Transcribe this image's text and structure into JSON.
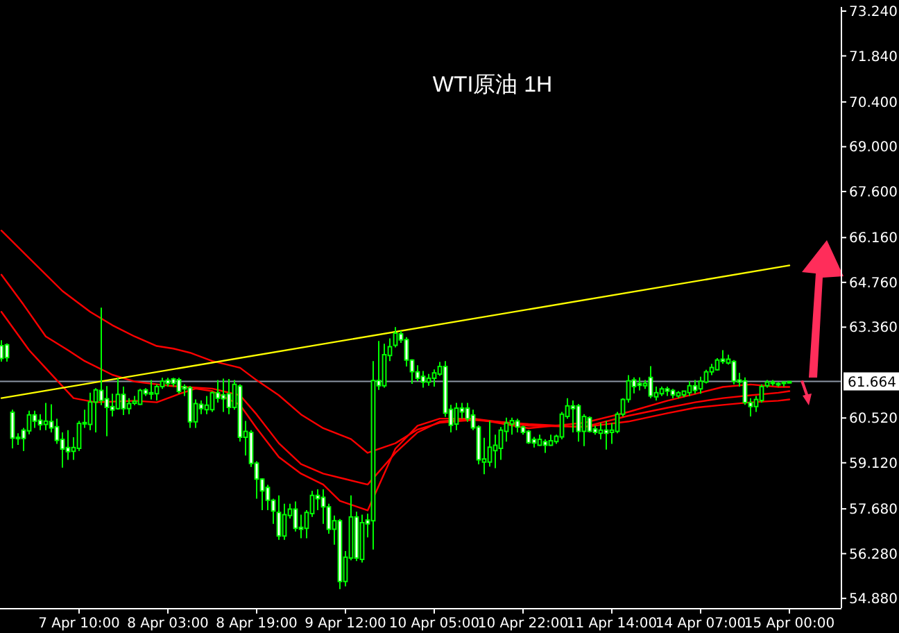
{
  "chart_data": {
    "type": "candlestick",
    "title": "WTI原油 1H",
    "color": "#00ff00",
    "categories": [
      null,
      null,
      null,
      null,
      null,
      null,
      null,
      null,
      null,
      null,
      null,
      null,
      null,
      null,
      "7 Apr 10:00",
      null,
      null,
      null,
      null,
      null,
      null,
      null,
      null,
      null,
      null,
      null,
      null,
      null,
      null,
      null,
      "8 Apr 03:00",
      null,
      null,
      null,
      null,
      null,
      null,
      null,
      null,
      null,
      null,
      null,
      null,
      null,
      null,
      null,
      "8 Apr 19:00",
      null,
      null,
      null,
      null,
      null,
      null,
      null,
      null,
      null,
      null,
      null,
      null,
      null,
      null,
      null,
      "9 Apr 12:00",
      null,
      null,
      null,
      null,
      null,
      null,
      null,
      null,
      null,
      null,
      null,
      null,
      null,
      null,
      null,
      "10 Apr 05:00",
      null,
      null,
      null,
      null,
      null,
      null,
      null,
      null,
      null,
      null,
      null,
      null,
      null,
      null,
      null,
      "10 Apr 22:00",
      null,
      null,
      null,
      null,
      null,
      null,
      null,
      null,
      null,
      null,
      null,
      null,
      null,
      null,
      null,
      "11 Apr 14:00",
      null,
      null,
      null,
      null,
      null,
      null,
      null,
      null,
      null,
      null,
      null,
      null,
      null,
      null,
      null,
      "14 Apr 07:00",
      null,
      null,
      null,
      null,
      null,
      null,
      null,
      null,
      null,
      null,
      null,
      null,
      null,
      null,
      null,
      "15 Apr 00:00"
    ],
    "ohlc": [
      [
        62.78,
        62.95,
        62.28,
        62.38
      ],
      [
        62.81,
        62.85,
        62.28,
        62.41
      ],
      [
        60.7,
        60.78,
        59.57,
        59.89
      ],
      [
        59.92,
        60.04,
        59.68,
        59.88
      ],
      [
        60.14,
        60.21,
        59.49,
        59.88
      ],
      [
        60.12,
        60.75,
        60.01,
        60.62
      ],
      [
        60.62,
        60.75,
        60.21,
        60.42
      ],
      [
        60.45,
        60.64,
        60.14,
        60.31
      ],
      [
        60.32,
        60.99,
        60.14,
        60.42
      ],
      [
        60.41,
        60.95,
        60.07,
        60.21
      ],
      [
        60.25,
        60.5,
        59.71,
        59.82
      ],
      [
        59.85,
        60.07,
        58.97,
        59.55
      ],
      [
        59.6,
        60.14,
        59.21,
        59.47
      ],
      [
        59.48,
        59.92,
        59.21,
        59.6
      ],
      [
        59.57,
        60.43,
        59.49,
        60.35
      ],
      [
        60.38,
        60.78,
        60.21,
        60.35
      ],
      [
        60.32,
        61.31,
        60.14,
        61.02
      ],
      [
        61.02,
        61.45,
        60.07,
        61.4
      ],
      [
        61.38,
        63.97,
        60.92,
        61.07
      ],
      [
        61.12,
        61.52,
        59.95,
        60.85
      ],
      [
        60.88,
        61.28,
        60.57,
        60.77
      ],
      [
        60.81,
        61.78,
        60.78,
        61.26
      ],
      [
        61.26,
        61.5,
        60.61,
        60.81
      ],
      [
        60.81,
        61.14,
        60.64,
        60.97
      ],
      [
        60.98,
        61.21,
        60.92,
        61.04
      ],
      [
        60.95,
        61.43,
        60.92,
        61.38
      ],
      [
        61.4,
        61.45,
        61.21,
        61.28
      ],
      [
        61.31,
        61.71,
        61.1,
        61.28
      ],
      [
        61.28,
        61.57,
        61.07,
        61.5
      ],
      [
        61.5,
        61.78,
        61.43,
        61.67
      ],
      [
        61.7,
        61.78,
        61.5,
        61.6
      ],
      [
        61.74,
        61.78,
        61.5,
        61.6
      ],
      [
        61.72,
        61.78,
        61.28,
        61.35
      ],
      [
        61.5,
        61.57,
        61.21,
        61.43
      ],
      [
        61.47,
        61.52,
        60.21,
        60.4
      ],
      [
        60.4,
        61.1,
        60.21,
        60.97
      ],
      [
        60.95,
        61.07,
        60.64,
        60.81
      ],
      [
        60.78,
        61.21,
        60.64,
        60.92
      ],
      [
        60.78,
        61.35,
        60.71,
        61.31
      ],
      [
        61.31,
        61.71,
        61.0,
        61.14
      ],
      [
        61.24,
        61.75,
        60.71,
        61.12
      ],
      [
        61.28,
        61.74,
        60.64,
        60.85
      ],
      [
        60.85,
        61.71,
        60.78,
        61.57
      ],
      [
        61.52,
        61.57,
        59.78,
        59.92
      ],
      [
        59.92,
        60.43,
        59.35,
        60.1
      ],
      [
        60.07,
        60.14,
        58.99,
        59.1
      ],
      [
        59.11,
        59.17,
        58.0,
        58.61
      ],
      [
        58.61,
        58.64,
        57.64,
        58.24
      ],
      [
        58.35,
        58.43,
        57.64,
        57.95
      ],
      [
        57.95,
        58.0,
        57.21,
        57.61
      ],
      [
        57.57,
        58.1,
        56.71,
        56.83
      ],
      [
        56.83,
        57.84,
        56.71,
        57.5
      ],
      [
        57.47,
        57.84,
        57.38,
        57.67
      ],
      [
        57.67,
        57.91,
        56.97,
        57.07
      ],
      [
        57.1,
        57.5,
        56.76,
        57.04
      ],
      [
        57.07,
        57.64,
        56.76,
        57.57
      ],
      [
        57.53,
        58.24,
        57.43,
        58.1
      ],
      [
        58.1,
        58.29,
        57.64,
        58.0
      ],
      [
        58.04,
        58.29,
        57.21,
        57.74
      ],
      [
        57.74,
        57.84,
        56.9,
        57.04
      ],
      [
        57.04,
        57.47,
        56.56,
        57.31
      ],
      [
        57.31,
        57.36,
        55.17,
        55.41
      ],
      [
        55.41,
        56.36,
        55.26,
        56.17
      ],
      [
        56.14,
        58.1,
        56.07,
        57.43
      ],
      [
        57.43,
        57.59,
        56.05,
        56.14
      ],
      [
        56.1,
        57.5,
        56.0,
        57.25
      ],
      [
        57.33,
        57.53,
        56.79,
        57.21
      ],
      [
        57.31,
        62.3,
        56.41,
        61.69
      ],
      [
        61.69,
        62.93,
        61.4,
        61.53
      ],
      [
        61.53,
        62.84,
        61.47,
        62.5
      ],
      [
        62.47,
        63.01,
        62.3,
        62.75
      ],
      [
        62.79,
        63.36,
        62.73,
        63.17
      ],
      [
        63.15,
        63.24,
        62.87,
        62.96
      ],
      [
        62.97,
        63.05,
        62.13,
        62.33
      ],
      [
        62.33,
        62.36,
        61.59,
        61.97
      ],
      [
        61.96,
        62.17,
        61.67,
        61.76
      ],
      [
        61.82,
        61.99,
        61.47,
        61.64
      ],
      [
        61.64,
        61.9,
        61.53,
        61.76
      ],
      [
        61.76,
        62.04,
        61.5,
        61.93
      ],
      [
        61.89,
        62.27,
        61.84,
        62.13
      ],
      [
        62.13,
        62.3,
        60.56,
        60.67
      ],
      [
        60.79,
        60.93,
        60.07,
        60.29
      ],
      [
        60.33,
        60.99,
        60.14,
        60.83
      ],
      [
        60.83,
        60.99,
        60.5,
        60.71
      ],
      [
        60.83,
        60.99,
        60.4,
        60.5
      ],
      [
        60.61,
        60.78,
        60.14,
        60.21
      ],
      [
        60.24,
        60.29,
        59.07,
        59.21
      ],
      [
        59.14,
        59.9,
        58.76,
        59.24
      ],
      [
        59.14,
        60.43,
        59.0,
        59.61
      ],
      [
        59.5,
        60.0,
        58.95,
        59.67
      ],
      [
        59.57,
        60.24,
        59.21,
        60.14
      ],
      [
        60.1,
        60.53,
        59.78,
        60.36
      ],
      [
        60.33,
        60.53,
        60.0,
        60.44
      ],
      [
        60.43,
        60.5,
        60.07,
        60.24
      ],
      [
        60.24,
        60.28,
        60.0,
        60.07
      ],
      [
        60.1,
        60.14,
        59.71,
        59.75
      ],
      [
        59.85,
        59.93,
        59.6,
        59.74
      ],
      [
        59.67,
        60.0,
        59.64,
        59.85
      ],
      [
        59.78,
        59.85,
        59.43,
        59.67
      ],
      [
        59.67,
        60.0,
        59.64,
        59.81
      ],
      [
        59.78,
        60.0,
        59.71,
        59.95
      ],
      [
        59.93,
        60.71,
        59.85,
        60.64
      ],
      [
        60.57,
        61.14,
        60.5,
        60.9
      ],
      [
        60.9,
        61.07,
        60.07,
        60.81
      ],
      [
        60.9,
        60.96,
        59.78,
        60.1
      ],
      [
        60.1,
        60.64,
        59.64,
        60.57
      ],
      [
        60.53,
        60.57,
        60.07,
        60.1
      ],
      [
        60.18,
        60.28,
        60.0,
        60.07
      ],
      [
        60.04,
        60.36,
        59.85,
        60.14
      ],
      [
        60.14,
        60.43,
        59.53,
        60.04
      ],
      [
        60.07,
        60.36,
        59.71,
        60.14
      ],
      [
        60.1,
        60.71,
        60.04,
        60.64
      ],
      [
        60.64,
        61.14,
        60.57,
        61.1
      ],
      [
        61.1,
        61.86,
        61.0,
        61.68
      ],
      [
        61.71,
        61.79,
        61.29,
        61.5
      ],
      [
        61.6,
        61.79,
        61.38,
        61.54
      ],
      [
        61.53,
        61.71,
        61.43,
        61.6
      ],
      [
        61.79,
        62.14,
        61.14,
        61.21
      ],
      [
        61.18,
        61.5,
        61.07,
        61.31
      ],
      [
        61.28,
        61.5,
        61.21,
        61.43
      ],
      [
        61.43,
        61.5,
        61.21,
        61.36
      ],
      [
        61.38,
        61.43,
        61.14,
        61.24
      ],
      [
        61.21,
        61.36,
        61.14,
        61.31
      ],
      [
        61.24,
        61.38,
        61.17,
        61.36
      ],
      [
        61.31,
        61.67,
        61.21,
        61.53
      ],
      [
        61.53,
        61.71,
        61.28,
        61.38
      ],
      [
        61.43,
        61.81,
        61.28,
        61.67
      ],
      [
        61.64,
        62.03,
        61.6,
        61.96
      ],
      [
        61.96,
        62.21,
        61.86,
        62.1
      ],
      [
        62.03,
        62.39,
        62.0,
        62.33
      ],
      [
        62.36,
        62.64,
        62.21,
        62.29
      ],
      [
        62.24,
        62.5,
        62.19,
        62.36
      ],
      [
        62.29,
        62.33,
        61.57,
        61.67
      ],
      [
        61.71,
        61.93,
        61.5,
        61.64
      ],
      [
        61.68,
        61.79,
        60.93,
        61.0
      ],
      [
        61.0,
        61.14,
        60.57,
        60.88
      ],
      [
        60.88,
        61.21,
        60.71,
        61.1
      ],
      [
        61.07,
        61.57,
        61.0,
        61.5
      ],
      [
        61.53,
        61.71,
        61.47,
        61.64
      ],
      [
        61.6,
        61.71,
        61.53,
        61.64
      ],
      [
        61.57,
        61.64,
        61.5,
        61.6
      ],
      [
        61.6,
        61.64,
        61.5,
        61.64
      ],
      [
        61.64,
        61.67,
        61.6,
        61.66
      ]
    ],
    "series": [
      {
        "type": "line",
        "color": "#ff0000",
        "values": [
          66.38,
          null,
          null,
          null,
          null,
          65.52,
          null,
          null,
          null,
          null,
          null,
          64.49,
          null,
          null,
          null,
          null,
          63.84,
          null,
          null,
          null,
          63.42,
          null,
          null,
          null,
          63.07,
          null,
          null,
          null,
          62.77,
          null,
          null,
          62.69,
          null,
          null,
          62.56,
          null,
          null,
          null,
          62.3,
          null,
          null,
          null,
          null,
          62.09,
          null,
          null,
          61.7,
          null,
          null,
          null,
          61.23,
          null,
          null,
          null,
          60.63,
          null,
          null,
          null,
          60.2,
          null,
          null,
          null,
          null,
          59.86,
          null,
          null,
          59.43,
          null,
          null,
          null,
          null,
          59.73,
          null,
          null,
          null,
          60.16,
          null,
          null,
          null,
          60.37,
          null,
          null,
          null,
          null,
          null,
          60.46,
          null,
          null,
          null,
          null,
          null,
          null,
          null,
          null,
          null,
          60.33,
          null,
          null,
          null,
          null,
          null,
          null,
          null,
          null,
          null,
          60.24,
          null,
          null,
          null,
          null,
          null,
          null,
          null,
          60.41,
          null,
          null,
          null,
          null,
          null,
          null,
          60.67,
          null,
          null,
          null,
          null,
          60.84,
          null,
          null,
          null,
          null,
          60.93,
          null,
          null,
          null,
          null,
          61.01,
          null,
          null,
          null,
          null,
          61.06,
          null,
          61.1
        ]
      },
      {
        "type": "line",
        "color": "#ff0000",
        "values": [
          65.0,
          null,
          null,
          null,
          64.06,
          null,
          null,
          null,
          63.07,
          null,
          null,
          null,
          62.64,
          null,
          null,
          62.3,
          null,
          null,
          null,
          null,
          61.87,
          null,
          null,
          null,
          61.66,
          null,
          null,
          null,
          null,
          null,
          61.53,
          null,
          null,
          61.49,
          null,
          null,
          null,
          null,
          61.44,
          null,
          null,
          null,
          null,
          61.23,
          null,
          null,
          60.63,
          null,
          null,
          null,
          59.73,
          null,
          null,
          null,
          59.08,
          null,
          null,
          null,
          58.78,
          null,
          null,
          null,
          58.61,
          null,
          null,
          null,
          58.44,
          null,
          null,
          null,
          null,
          59.43,
          null,
          null,
          null,
          60.07,
          null,
          null,
          null,
          60.41,
          null,
          null,
          null,
          null,
          null,
          60.5,
          null,
          null,
          null,
          null,
          null,
          null,
          null,
          null,
          null,
          60.28,
          null,
          null,
          null,
          null,
          null,
          null,
          null,
          null,
          null,
          60.24,
          null,
          null,
          null,
          null,
          null,
          null,
          null,
          60.59,
          null,
          null,
          null,
          null,
          null,
          null,
          60.84,
          null,
          null,
          null,
          null,
          61.01,
          null,
          null,
          null,
          null,
          61.14,
          null,
          null,
          null,
          null,
          61.23,
          null,
          null,
          null,
          null,
          61.31,
          null,
          61.36
        ]
      },
      {
        "type": "line",
        "color": "#ff0000",
        "values": [
          63.84,
          null,
          null,
          null,
          null,
          62.64,
          null,
          null,
          null,
          null,
          61.7,
          null,
          null,
          61.14,
          null,
          null,
          null,
          61.01,
          null,
          null,
          null,
          null,
          null,
          null,
          61.06,
          null,
          null,
          null,
          61.01,
          null,
          null,
          null,
          61.27,
          null,
          null,
          61.44,
          null,
          null,
          61.36,
          null,
          null,
          null,
          null,
          60.93,
          null,
          null,
          60.2,
          null,
          null,
          null,
          59.3,
          null,
          null,
          null,
          58.78,
          null,
          null,
          null,
          58.44,
          null,
          null,
          57.93,
          null,
          null,
          null,
          null,
          57.63,
          null,
          null,
          null,
          null,
          59.56,
          null,
          null,
          null,
          60.28,
          null,
          null,
          null,
          60.5,
          null,
          null,
          null,
          null,
          null,
          60.5,
          null,
          null,
          null,
          null,
          null,
          null,
          null,
          null,
          null,
          60.2,
          null,
          null,
          null,
          null,
          null,
          null,
          null,
          null,
          null,
          60.37,
          null,
          null,
          null,
          null,
          null,
          null,
          null,
          60.71,
          null,
          null,
          null,
          null,
          null,
          null,
          61.06,
          null,
          null,
          null,
          null,
          61.27,
          null,
          null,
          null,
          null,
          61.49,
          null,
          null,
          null,
          null,
          61.57,
          null,
          null,
          null,
          null,
          61.49,
          null,
          61.49
        ]
      },
      {
        "type": "line",
        "color": "#ffff00",
        "values": [
          61.14,
          null,
          null,
          null,
          null,
          null,
          null,
          null,
          null,
          null,
          null,
          null,
          null,
          null,
          null,
          null,
          null,
          null,
          null,
          null,
          null,
          null,
          null,
          null,
          null,
          null,
          null,
          null,
          null,
          null,
          null,
          null,
          null,
          null,
          null,
          null,
          null,
          null,
          null,
          null,
          null,
          null,
          null,
          null,
          null,
          null,
          null,
          null,
          null,
          null,
          null,
          null,
          null,
          null,
          null,
          null,
          null,
          null,
          null,
          null,
          null,
          null,
          null,
          null,
          null,
          null,
          null,
          null,
          null,
          null,
          null,
          null,
          null,
          null,
          null,
          null,
          null,
          null,
          null,
          null,
          null,
          null,
          null,
          null,
          null,
          null,
          null,
          null,
          null,
          null,
          null,
          null,
          null,
          null,
          null,
          null,
          null,
          null,
          null,
          null,
          null,
          null,
          null,
          null,
          null,
          null,
          null,
          null,
          null,
          null,
          null,
          null,
          null,
          null,
          null,
          null,
          null,
          null,
          null,
          null,
          null,
          null,
          null,
          null,
          null,
          null,
          null,
          null,
          null,
          null,
          null,
          null,
          null,
          null,
          null,
          null,
          null,
          null,
          null,
          null,
          null,
          null,
          65.29
        ]
      }
    ],
    "ylim": [
      54.58,
      73.37
    ],
    "yticks": [
      {
        "value": 73.24,
        "label": "73.240"
      },
      {
        "value": 71.84,
        "label": "71.840"
      },
      {
        "value": 70.4,
        "label": "70.400"
      },
      {
        "value": 69.0,
        "label": "69.000"
      },
      {
        "value": 67.6,
        "label": "67.600"
      },
      {
        "value": 66.16,
        "label": "66.160"
      },
      {
        "value": 64.76,
        "label": "64.760"
      },
      {
        "value": 63.36,
        "label": "63.360"
      },
      {
        "value": 60.52,
        "label": "60.520"
      },
      {
        "value": 59.12,
        "label": "59.120"
      },
      {
        "value": 57.68,
        "label": "57.680"
      },
      {
        "value": 56.28,
        "label": "56.280"
      },
      {
        "value": 54.88,
        "label": "54.880"
      }
    ],
    "ref_lines": [
      {
        "axis": "y",
        "value": 61.664,
        "label": "61.664",
        "color": "#8c96a5"
      }
    ]
  }
}
